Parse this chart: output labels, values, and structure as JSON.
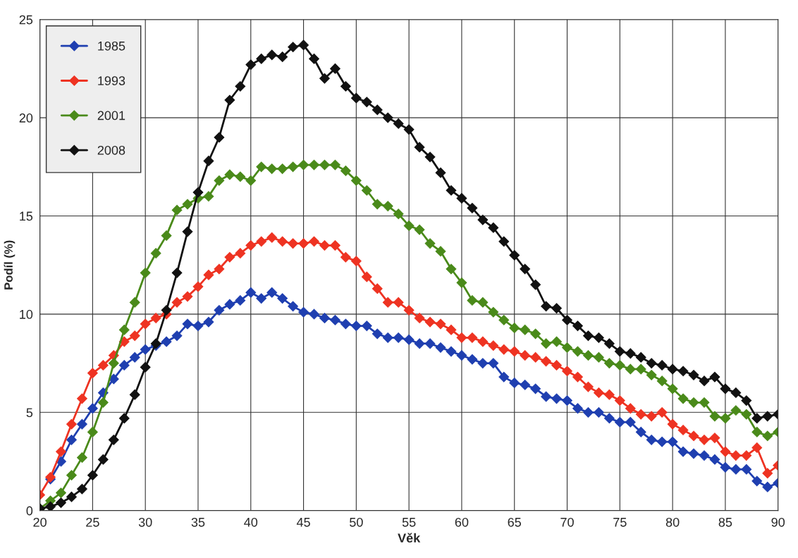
{
  "chart_data": {
    "type": "line",
    "xlabel": "Věk",
    "ylabel": "Podíl (%)",
    "xlim": [
      20,
      90
    ],
    "xticks": [
      20,
      25,
      30,
      35,
      40,
      45,
      50,
      55,
      60,
      65,
      70,
      75,
      80,
      85,
      90
    ],
    "ylim": [
      0,
      25
    ],
    "yticks": [
      0,
      5,
      10,
      15,
      20,
      25
    ],
    "grid": true,
    "legend": "top left",
    "marker": "diamond",
    "line_style": "solid",
    "x": [
      20,
      21,
      22,
      23,
      24,
      25,
      26,
      27,
      28,
      29,
      30,
      31,
      32,
      33,
      34,
      35,
      36,
      37,
      38,
      39,
      40,
      41,
      42,
      43,
      44,
      45,
      46,
      47,
      48,
      49,
      50,
      51,
      52,
      53,
      54,
      55,
      56,
      57,
      58,
      59,
      60,
      61,
      62,
      63,
      64,
      65,
      66,
      67,
      68,
      69,
      70,
      71,
      72,
      73,
      74,
      75,
      76,
      77,
      78,
      79,
      80,
      81,
      82,
      83,
      84,
      85,
      86,
      87,
      88,
      89,
      90
    ],
    "series": [
      {
        "name": "1985",
        "color": "#1f3fb0",
        "values": [
          null,
          1.6,
          2.5,
          3.6,
          4.4,
          5.2,
          6.0,
          6.7,
          7.4,
          7.8,
          8.2,
          8.4,
          8.6,
          8.9,
          9.5,
          9.4,
          9.6,
          10.2,
          10.5,
          10.7,
          11.1,
          10.8,
          11.1,
          10.8,
          10.4,
          10.1,
          10.0,
          9.8,
          9.7,
          9.5,
          9.4,
          9.4,
          9.0,
          8.8,
          8.8,
          8.7,
          8.5,
          8.5,
          8.3,
          8.1,
          7.9,
          7.7,
          7.5,
          7.5,
          6.8,
          6.5,
          6.4,
          6.2,
          5.8,
          5.7,
          5.6,
          5.2,
          5.0,
          5.0,
          4.7,
          4.5,
          4.5,
          4.0,
          3.6,
          3.5,
          3.5,
          3.0,
          2.9,
          2.8,
          2.6,
          2.2,
          2.1,
          2.1,
          1.5,
          1.2,
          1.4
        ]
      },
      {
        "name": "1993",
        "color": "#ee3322",
        "values": [
          0.8,
          1.7,
          3.0,
          4.4,
          5.7,
          7.0,
          7.4,
          7.9,
          8.6,
          8.9,
          9.5,
          9.8,
          10.0,
          10.6,
          10.9,
          11.4,
          12.0,
          12.3,
          12.9,
          13.1,
          13.5,
          13.7,
          13.9,
          13.7,
          13.6,
          13.6,
          13.7,
          13.5,
          13.5,
          12.9,
          12.7,
          11.9,
          11.3,
          10.6,
          10.6,
          10.2,
          9.8,
          9.6,
          9.5,
          9.2,
          8.8,
          8.8,
          8.6,
          8.4,
          8.2,
          8.1,
          7.9,
          7.8,
          7.6,
          7.4,
          7.1,
          6.8,
          6.3,
          6.0,
          5.9,
          5.6,
          5.2,
          4.9,
          4.8,
          5.0,
          4.4,
          4.1,
          3.8,
          3.6,
          3.7,
          3.0,
          2.8,
          2.8,
          3.2,
          1.9,
          2.3
        ]
      },
      {
        "name": "2001",
        "color": "#4a8a1a",
        "values": [
          0.1,
          0.5,
          0.9,
          1.8,
          2.7,
          4.0,
          5.5,
          7.5,
          9.2,
          10.6,
          12.1,
          13.1,
          14.0,
          15.3,
          15.6,
          15.9,
          16.0,
          16.8,
          17.1,
          17.0,
          16.8,
          17.5,
          17.4,
          17.4,
          17.5,
          17.6,
          17.6,
          17.6,
          17.6,
          17.3,
          16.8,
          16.3,
          15.6,
          15.5,
          15.1,
          14.5,
          14.3,
          13.6,
          13.2,
          12.3,
          11.6,
          10.7,
          10.6,
          10.1,
          9.7,
          9.3,
          9.2,
          9.0,
          8.5,
          8.6,
          8.3,
          8.1,
          7.9,
          7.8,
          7.5,
          7.4,
          7.2,
          7.2,
          6.9,
          6.6,
          6.2,
          5.7,
          5.5,
          5.5,
          4.8,
          4.7,
          5.1,
          4.9,
          4.0,
          3.8,
          4.0
        ]
      },
      {
        "name": "2008",
        "color": "#111111",
        "values": [
          0.1,
          0.2,
          0.4,
          0.7,
          1.1,
          1.8,
          2.6,
          3.6,
          4.7,
          5.9,
          7.3,
          8.5,
          10.2,
          12.1,
          14.2,
          16.2,
          17.8,
          19.0,
          20.9,
          21.6,
          22.7,
          23.0,
          23.2,
          23.1,
          23.6,
          23.7,
          23.0,
          22.0,
          22.5,
          21.6,
          21.0,
          20.8,
          20.4,
          20.0,
          19.7,
          19.4,
          18.5,
          18.0,
          17.2,
          16.3,
          15.9,
          15.4,
          14.8,
          14.4,
          13.7,
          13.0,
          12.3,
          11.5,
          10.4,
          10.3,
          9.7,
          9.4,
          8.9,
          8.8,
          8.5,
          8.1,
          8.0,
          7.8,
          7.5,
          7.4,
          7.2,
          7.1,
          6.9,
          6.6,
          6.8,
          6.2,
          6.0,
          5.6,
          4.7,
          4.8,
          4.9
        ]
      }
    ]
  }
}
